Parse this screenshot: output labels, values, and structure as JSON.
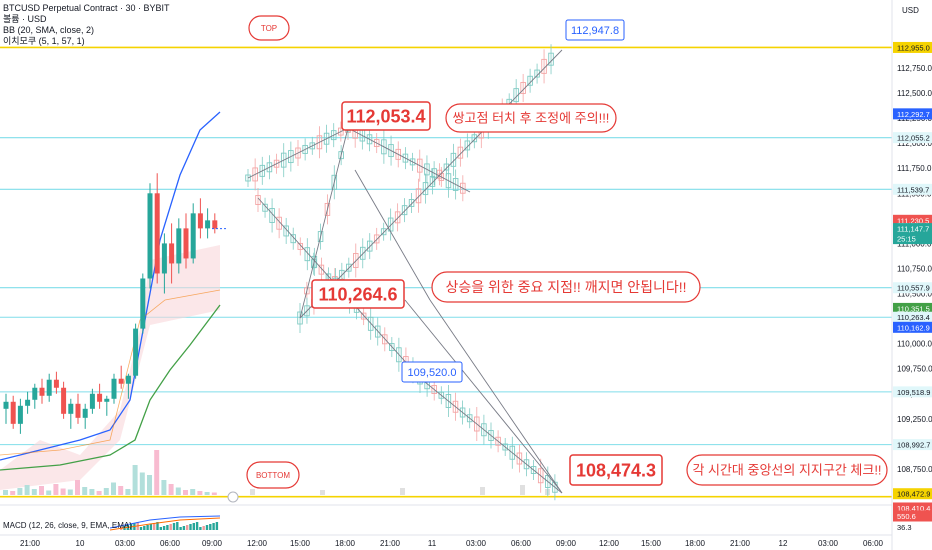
{
  "legend": {
    "symbol": "BTCUSD Perpetual Contract · 30 · BYBIT",
    "volume": "볼륨 · USD",
    "bb": "BB (20, SMA, close, 2)",
    "ichimoku": "이치모쿠 (5, 1, 57, 1)"
  },
  "currency": "USD",
  "macd_label": "MACD (12, 26, close, 9, EMA, EMA)",
  "colors": {
    "up": "#26a69a",
    "down": "#ef5350",
    "annotation_red": "#e53935",
    "annotation_blue": "#2962ff",
    "hline_cyan": "#80deea",
    "hline_yellow": "#f5d300",
    "bb_upper": "#2962ff",
    "bb_lower": "#43a047"
  },
  "chart_data": {
    "type": "candlestick",
    "y_axis_ticks": [
      "112,750.0",
      "112,500.0",
      "112,250.0",
      "112,000.0",
      "111,750.0",
      "111,500.0",
      "111,250.0",
      "111,000.0",
      "110,750.0",
      "110,500.0",
      "110,250.0",
      "110,000.0",
      "109,750.0",
      "109,500.0",
      "109,250.0",
      "109,000.0",
      "108,750.0",
      "108,500.0"
    ],
    "x_axis_ticks": [
      "21:00",
      "10",
      "03:00",
      "06:00",
      "09:00",
      "12:00",
      "15:00",
      "18:00",
      "21:00",
      "11",
      "03:00",
      "06:00",
      "09:00",
      "12:00",
      "15:00",
      "18:00",
      "21:00",
      "12",
      "03:00",
      "06:00"
    ],
    "price_tags": [
      {
        "text": "USD",
        "kind": "header"
      },
      {
        "text": "112,955.0",
        "value": 112955.0,
        "kind": "yellow"
      },
      {
        "text": "112,292.7",
        "value": 112292.7,
        "kind": "blue"
      },
      {
        "text": "112,055.2",
        "value": 112055.2,
        "kind": "cyan"
      },
      {
        "text": "111,539.7",
        "value": 111539.7,
        "kind": "cyan"
      },
      {
        "text": "111,230.5",
        "value": 111230.5,
        "kind": "red"
      },
      {
        "text": "111,147.7",
        "value": 111147.7,
        "kind": "price"
      },
      {
        "text": "25:15",
        "kind": "countdown"
      },
      {
        "text": "110,557.9",
        "value": 110557.9,
        "kind": "cyan"
      },
      {
        "text": "110,351.5",
        "value": 110351.5,
        "kind": "green"
      },
      {
        "text": "110,263.4",
        "value": 110263.4,
        "kind": "cyan"
      },
      {
        "text": "110,162.9",
        "value": 110162.9,
        "kind": "blue"
      },
      {
        "text": "109,518.9",
        "value": 109518.9,
        "kind": "cyan"
      },
      {
        "text": "108,992.7",
        "value": 108992.7,
        "kind": "cyan"
      },
      {
        "text": "108,472.9",
        "value": 108472.9,
        "kind": "yellow"
      },
      {
        "text": "108,410.4",
        "value": 108410.4,
        "kind": "redsmall"
      },
      {
        "text": "550.6",
        "kind": "macdred"
      },
      {
        "text": "36.3",
        "kind": "macdgray"
      }
    ],
    "horizontal_levels": [
      112955.0,
      112055.2,
      111539.7,
      110557.9,
      110263.4,
      109518.9,
      108992.7,
      108472.9
    ],
    "candles": [
      [
        109350,
        109500,
        109200,
        109420
      ],
      [
        109420,
        109480,
        109150,
        109200
      ],
      [
        109200,
        109450,
        109100,
        109380
      ],
      [
        109380,
        109520,
        109300,
        109440
      ],
      [
        109440,
        109600,
        109350,
        109560
      ],
      [
        109560,
        109650,
        109400,
        109480
      ],
      [
        109480,
        109700,
        109420,
        109640
      ],
      [
        109640,
        109720,
        109500,
        109560
      ],
      [
        109560,
        109620,
        109250,
        109300
      ],
      [
        109300,
        109450,
        109150,
        109400
      ],
      [
        109400,
        109500,
        109200,
        109260
      ],
      [
        109260,
        109400,
        109150,
        109350
      ],
      [
        109350,
        109550,
        109300,
        109500
      ],
      [
        109500,
        109600,
        109350,
        109420
      ],
      [
        109420,
        109480,
        109280,
        109450
      ],
      [
        109450,
        109700,
        109400,
        109650
      ],
      [
        109650,
        109780,
        109550,
        109600
      ],
      [
        109600,
        109700,
        109450,
        109680
      ],
      [
        109680,
        110200,
        109650,
        110150
      ],
      [
        110150,
        110700,
        110100,
        110650
      ],
      [
        110650,
        111600,
        110550,
        111500
      ],
      [
        111500,
        111700,
        110600,
        110700
      ],
      [
        110700,
        111100,
        110500,
        111000
      ],
      [
        111000,
        111200,
        110600,
        110800
      ],
      [
        110800,
        111250,
        110700,
        111150
      ],
      [
        111150,
        111300,
        110750,
        110850
      ],
      [
        110850,
        111400,
        110800,
        111300
      ],
      [
        111300,
        111450,
        111050,
        111150
      ],
      [
        111150,
        111350,
        111050,
        111230
      ],
      [
        111230,
        111300,
        111100,
        111147.7
      ]
    ],
    "projection_vertices": [
      {
        "label": "start",
        "y": 111550
      },
      {
        "label": "peak",
        "y": 112053.4
      },
      {
        "label": "low",
        "y": 110264.6
      },
      {
        "label": "TOP",
        "y": 112947.8
      },
      {
        "label": "retest",
        "y": 109520.0
      },
      {
        "label": "BOTTOM",
        "y": 108474.3
      }
    ]
  },
  "annotations": {
    "top_badge": "TOP",
    "bottom_badge": "BOTTOM",
    "top_price": "112,947.8",
    "peak_price": "112,053.4",
    "mid_low_price": "110,264.6",
    "retest_price": "109,520.0",
    "bottom_price": "108,474.3",
    "note_top": "쌍고점 터치 후 조정에 주의!!!",
    "note_mid": "상승을 위한 중요 지점!! 깨지면 안됩니다!!",
    "note_bottom": "각 시간대 중앙선의 지지구간 체크!!"
  }
}
